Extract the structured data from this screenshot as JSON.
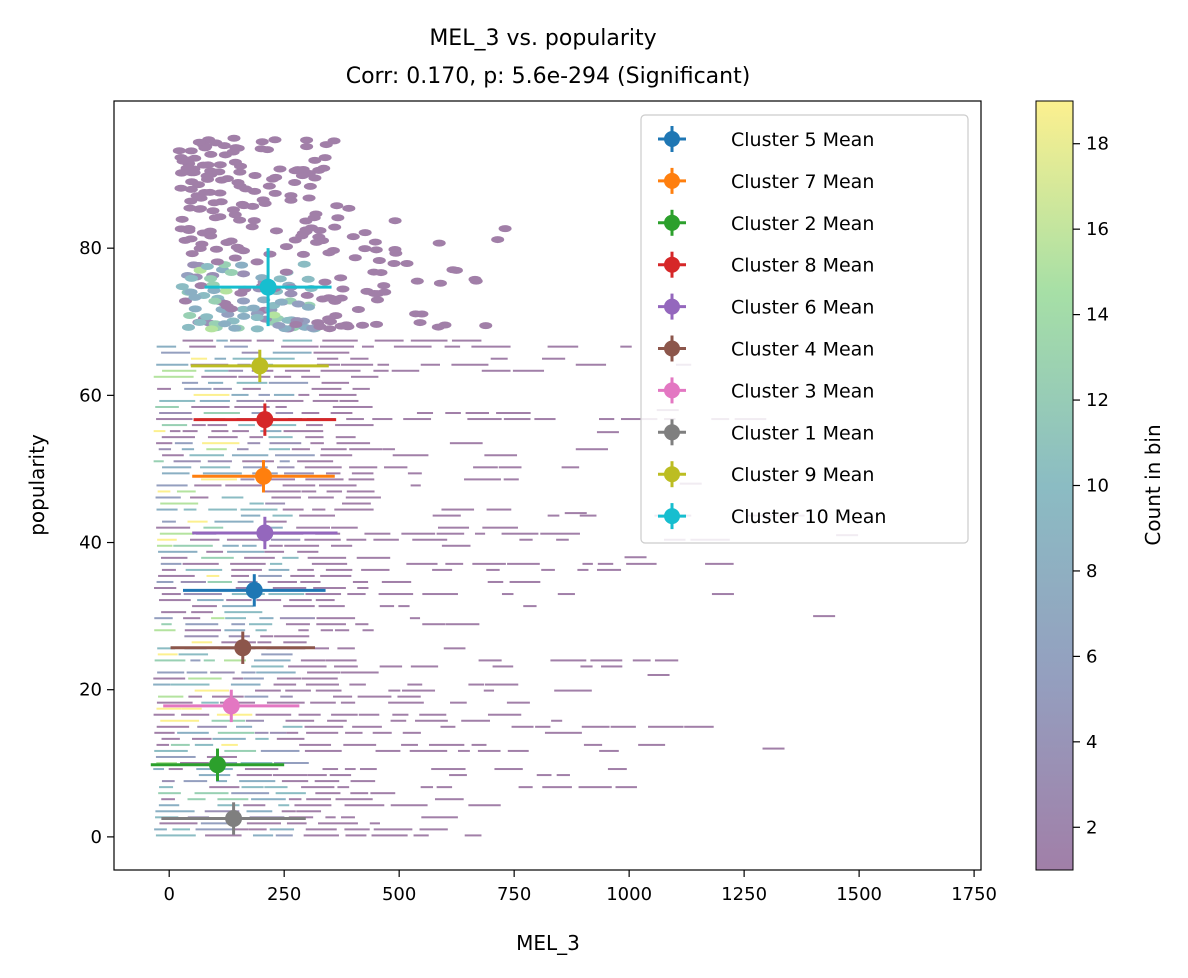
{
  "chart_data": {
    "type": "scatter",
    "title": "MEL_3 vs. popularity",
    "subtitle": "Corr: 0.170, p: 5.6e-294 (Significant)",
    "xlabel": "MEL_3",
    "ylabel": "popularity",
    "xlim": [
      -120,
      1765
    ],
    "ylim": [
      -4.5,
      100
    ],
    "xticks": [
      "0",
      "250",
      "500",
      "750",
      "1000",
      "1250",
      "1500",
      "1750"
    ],
    "yticks": [
      "0",
      "20",
      "40",
      "60",
      "80"
    ],
    "grid": false,
    "legend_position": "top-right",
    "background": {
      "type": "hexbin",
      "colormap": "viridis",
      "alpha": 0.5,
      "colorbar_label": "Count in bin",
      "colorbar_range": [
        1,
        19
      ],
      "colorbar_ticks": [
        "2",
        "4",
        "6",
        "8",
        "10",
        "12",
        "14",
        "16",
        "18"
      ]
    },
    "series": [
      {
        "name": "Cluster 5 Mean",
        "color": "#1f77b4",
        "x": 185,
        "y": 33.5,
        "xerr": 155,
        "yerr": 2.2
      },
      {
        "name": "Cluster 7 Mean",
        "color": "#ff7f0e",
        "x": 205,
        "y": 49.0,
        "xerr": 155,
        "yerr": 2.2
      },
      {
        "name": "Cluster 2 Mean",
        "color": "#2ca02c",
        "x": 105,
        "y": 9.8,
        "xerr": 145,
        "yerr": 2.2
      },
      {
        "name": "Cluster 8 Mean",
        "color": "#d62728",
        "x": 208,
        "y": 56.7,
        "xerr": 155,
        "yerr": 2.2
      },
      {
        "name": "Cluster 6 Mean",
        "color": "#9467bd",
        "x": 208,
        "y": 41.3,
        "xerr": 158,
        "yerr": 2.2
      },
      {
        "name": "Cluster 4 Mean",
        "color": "#8c564b",
        "x": 160,
        "y": 25.7,
        "xerr": 157,
        "yerr": 2.2
      },
      {
        "name": "Cluster 3 Mean",
        "color": "#e377c2",
        "x": 135,
        "y": 17.8,
        "xerr": 148,
        "yerr": 2.2
      },
      {
        "name": "Cluster 1 Mean",
        "color": "#7f7f7f",
        "x": 140,
        "y": 2.5,
        "xerr": 157,
        "yerr": 2.2
      },
      {
        "name": "Cluster 9 Mean",
        "color": "#bcbd22",
        "x": 197,
        "y": 64.0,
        "xerr": 150,
        "yerr": 2.2
      },
      {
        "name": "Cluster 10 Mean",
        "color": "#17becf",
        "x": 215,
        "y": 74.7,
        "xerr": 138,
        "yerr": 5.3
      }
    ]
  }
}
